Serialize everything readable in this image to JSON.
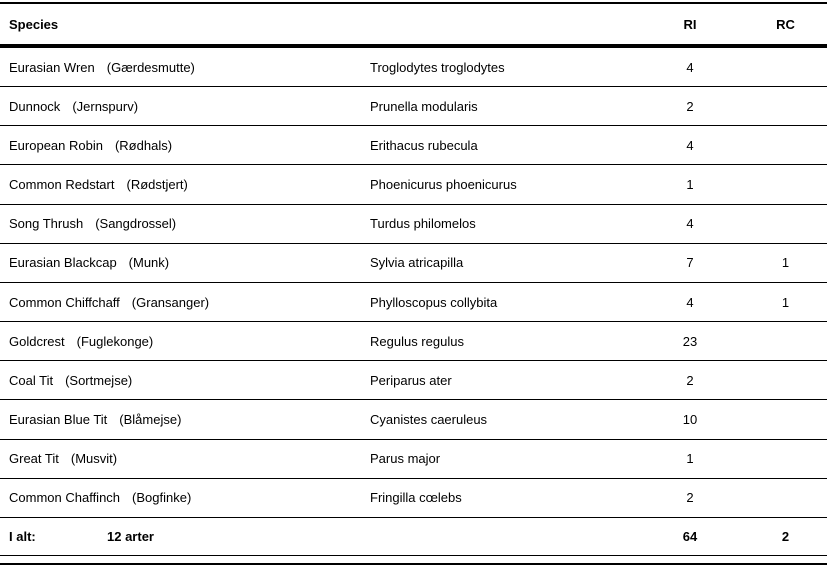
{
  "table": {
    "header": {
      "species": "Species",
      "ri": "RI",
      "rc": "RC"
    },
    "rows": [
      {
        "common": "Eurasian Wren",
        "danish": "(Gærdesmutte)",
        "scientific": "Troglodytes troglodytes",
        "ri": "4",
        "rc": ""
      },
      {
        "common": "Dunnock",
        "danish": "(Jernspurv)",
        "scientific": "Prunella modularis",
        "ri": "2",
        "rc": ""
      },
      {
        "common": "European Robin",
        "danish": "(Rødhals)",
        "scientific": "Erithacus rubecula",
        "ri": "4",
        "rc": ""
      },
      {
        "common": "Common Redstart",
        "danish": "(Rødstjert)",
        "scientific": "Phoenicurus phoenicurus",
        "ri": "1",
        "rc": ""
      },
      {
        "common": "Song Thrush",
        "danish": "(Sangdrossel)",
        "scientific": "Turdus philomelos",
        "ri": "4",
        "rc": ""
      },
      {
        "common": "Eurasian Blackcap",
        "danish": "(Munk)",
        "scientific": "Sylvia atricapilla",
        "ri": "7",
        "rc": "1"
      },
      {
        "common": "Common Chiffchaff",
        "danish": "(Gransanger)",
        "scientific": "Phylloscopus collybita",
        "ri": "4",
        "rc": "1"
      },
      {
        "common": "Goldcrest",
        "danish": "(Fuglekonge)",
        "scientific": "Regulus regulus",
        "ri": "23",
        "rc": ""
      },
      {
        "common": "Coal Tit",
        "danish": "(Sortmejse)",
        "scientific": "Periparus ater",
        "ri": "2",
        "rc": ""
      },
      {
        "common": "Eurasian Blue Tit",
        "danish": "(Blåmejse)",
        "scientific": "Cyanistes caeruleus",
        "ri": "10",
        "rc": ""
      },
      {
        "common": "Great Tit",
        "danish": "(Musvit)",
        "scientific": "Parus major",
        "ri": "1",
        "rc": ""
      },
      {
        "common": "Common Chaffinch",
        "danish": "(Bogfinke)",
        "scientific": "Fringilla cœlebs",
        "ri": "2",
        "rc": ""
      }
    ],
    "footer": {
      "label": "I alt:",
      "count": "12 arter",
      "ri": "64",
      "rc": "2"
    }
  },
  "colors": {
    "text": "#000000",
    "background": "#ffffff",
    "rule": "#000000"
  }
}
